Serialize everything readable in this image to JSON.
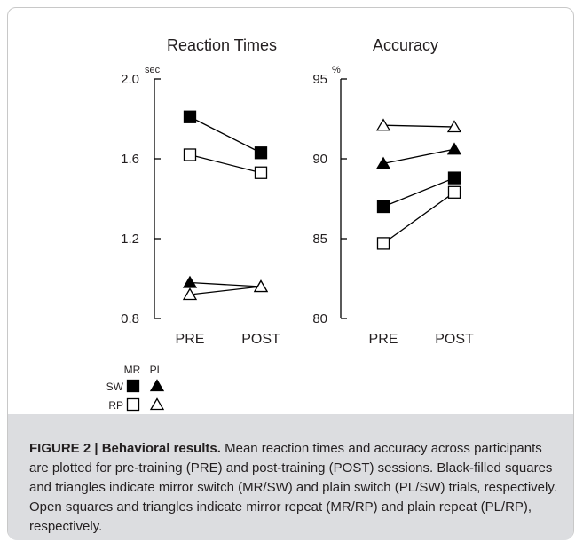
{
  "caption": {
    "label": "FIGURE 2 | Behavioral results.",
    "text": "Mean reaction times and accuracy across participants are plotted for pre-training (PRE) and post-training (POST) sessions. Black-filled squares and triangles indicate mirror switch (MR/SW) and plain switch (PL/SW) trials, respectively. Open squares and triangles indicate mirror repeat (MR/RP) and plain repeat (PL/RP), respectively."
  },
  "legend": {
    "col_headers": [
      "MR",
      "PL"
    ],
    "row_labels": [
      "SW",
      "RP"
    ]
  },
  "chart_data": [
    {
      "type": "line",
      "title": "Reaction Times",
      "unit": "sec",
      "categories": [
        "PRE",
        "POST"
      ],
      "ylim": [
        0.8,
        2.0
      ],
      "yticks": [
        "0.8",
        "1.2",
        "1.6",
        "2.0"
      ],
      "series": [
        {
          "name": "MR/SW",
          "marker": "square",
          "filled": true,
          "values": [
            1.81,
            1.63
          ]
        },
        {
          "name": "MR/RP",
          "marker": "square",
          "filled": false,
          "values": [
            1.62,
            1.53
          ]
        },
        {
          "name": "PL/SW",
          "marker": "triangle",
          "filled": true,
          "values": [
            0.98,
            0.96
          ]
        },
        {
          "name": "PL/RP",
          "marker": "triangle",
          "filled": false,
          "values": [
            0.92,
            0.96
          ]
        }
      ]
    },
    {
      "type": "line",
      "title": "Accuracy",
      "unit": "%",
      "categories": [
        "PRE",
        "POST"
      ],
      "ylim": [
        80,
        95
      ],
      "yticks": [
        "80",
        "85",
        "90",
        "95"
      ],
      "series": [
        {
          "name": "MR/SW",
          "marker": "square",
          "filled": true,
          "values": [
            87.0,
            88.8
          ]
        },
        {
          "name": "MR/RP",
          "marker": "square",
          "filled": false,
          "values": [
            84.7,
            87.9
          ]
        },
        {
          "name": "PL/SW",
          "marker": "triangle",
          "filled": true,
          "values": [
            89.7,
            90.6
          ]
        },
        {
          "name": "PL/RP",
          "marker": "triangle",
          "filled": false,
          "values": [
            92.1,
            92.0
          ]
        }
      ]
    }
  ]
}
